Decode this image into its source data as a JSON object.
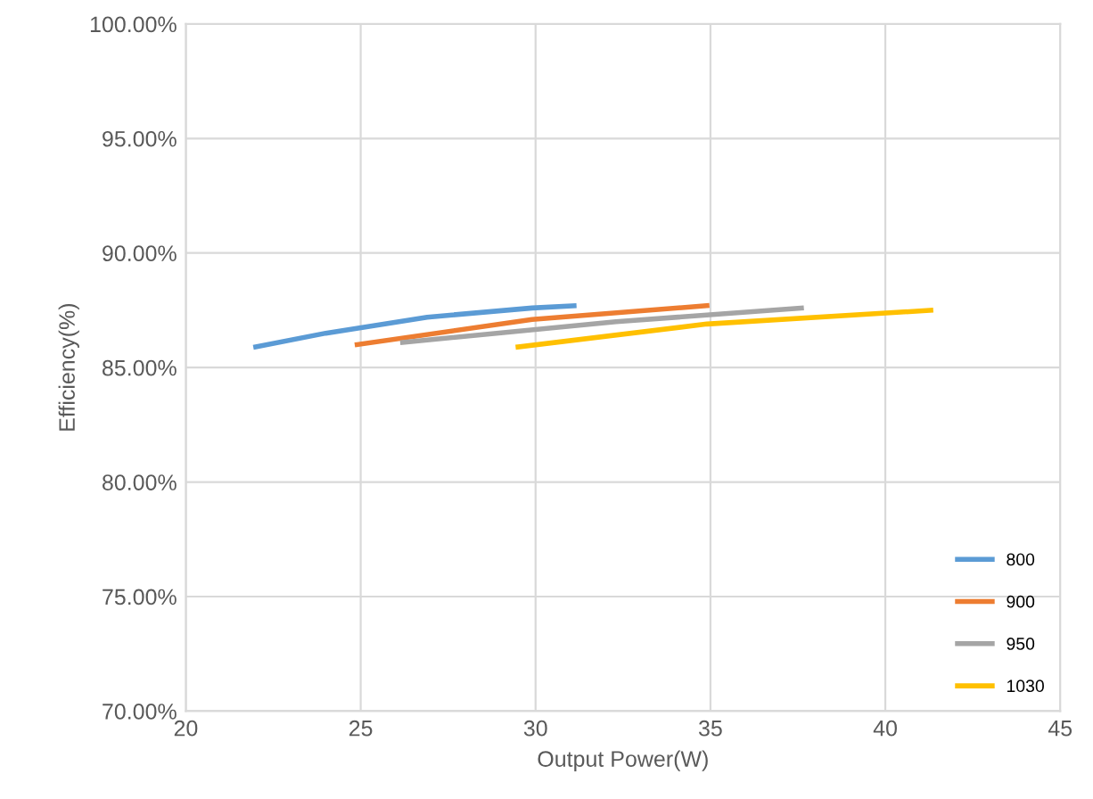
{
  "chart_data": {
    "type": "line",
    "xlabel": "Output Power(W)",
    "ylabel": "Efficiency(%)",
    "xlim": [
      20,
      45
    ],
    "xticks": [
      20,
      25,
      30,
      35,
      40,
      45
    ],
    "ylim": [
      70,
      100
    ],
    "yticks": [
      {
        "value": 70,
        "label": "70.00%"
      },
      {
        "value": 75,
        "label": "75.00%"
      },
      {
        "value": 80,
        "label": "80.00%"
      },
      {
        "value": 85,
        "label": "85.00%"
      },
      {
        "value": 90,
        "label": "90.00%"
      },
      {
        "value": 95,
        "label": "95.00%"
      },
      {
        "value": 100,
        "label": "100.00%"
      }
    ],
    "grid": true,
    "legend": "bottom right",
    "marker": "none",
    "line_style": "solid",
    "series": [
      {
        "name": "800",
        "color": "#5b9bd5",
        "x": [
          22,
          24,
          26.9,
          29.9,
          31.1
        ],
        "values": [
          85.9,
          86.5,
          87.2,
          87.6,
          87.7
        ]
      },
      {
        "name": "900",
        "color": "#ed7d31",
        "x": [
          24.9,
          29.9,
          34.9
        ],
        "values": [
          86.0,
          87.1,
          87.7
        ]
      },
      {
        "name": "950",
        "color": "#a5a5a5",
        "x": [
          26.2,
          32.3,
          37.6
        ],
        "values": [
          86.1,
          87.0,
          87.6
        ]
      },
      {
        "name": "1030",
        "color": "#ffc000",
        "x": [
          29.5,
          34.9,
          41.3
        ],
        "values": [
          85.9,
          86.9,
          87.5
        ]
      }
    ]
  }
}
